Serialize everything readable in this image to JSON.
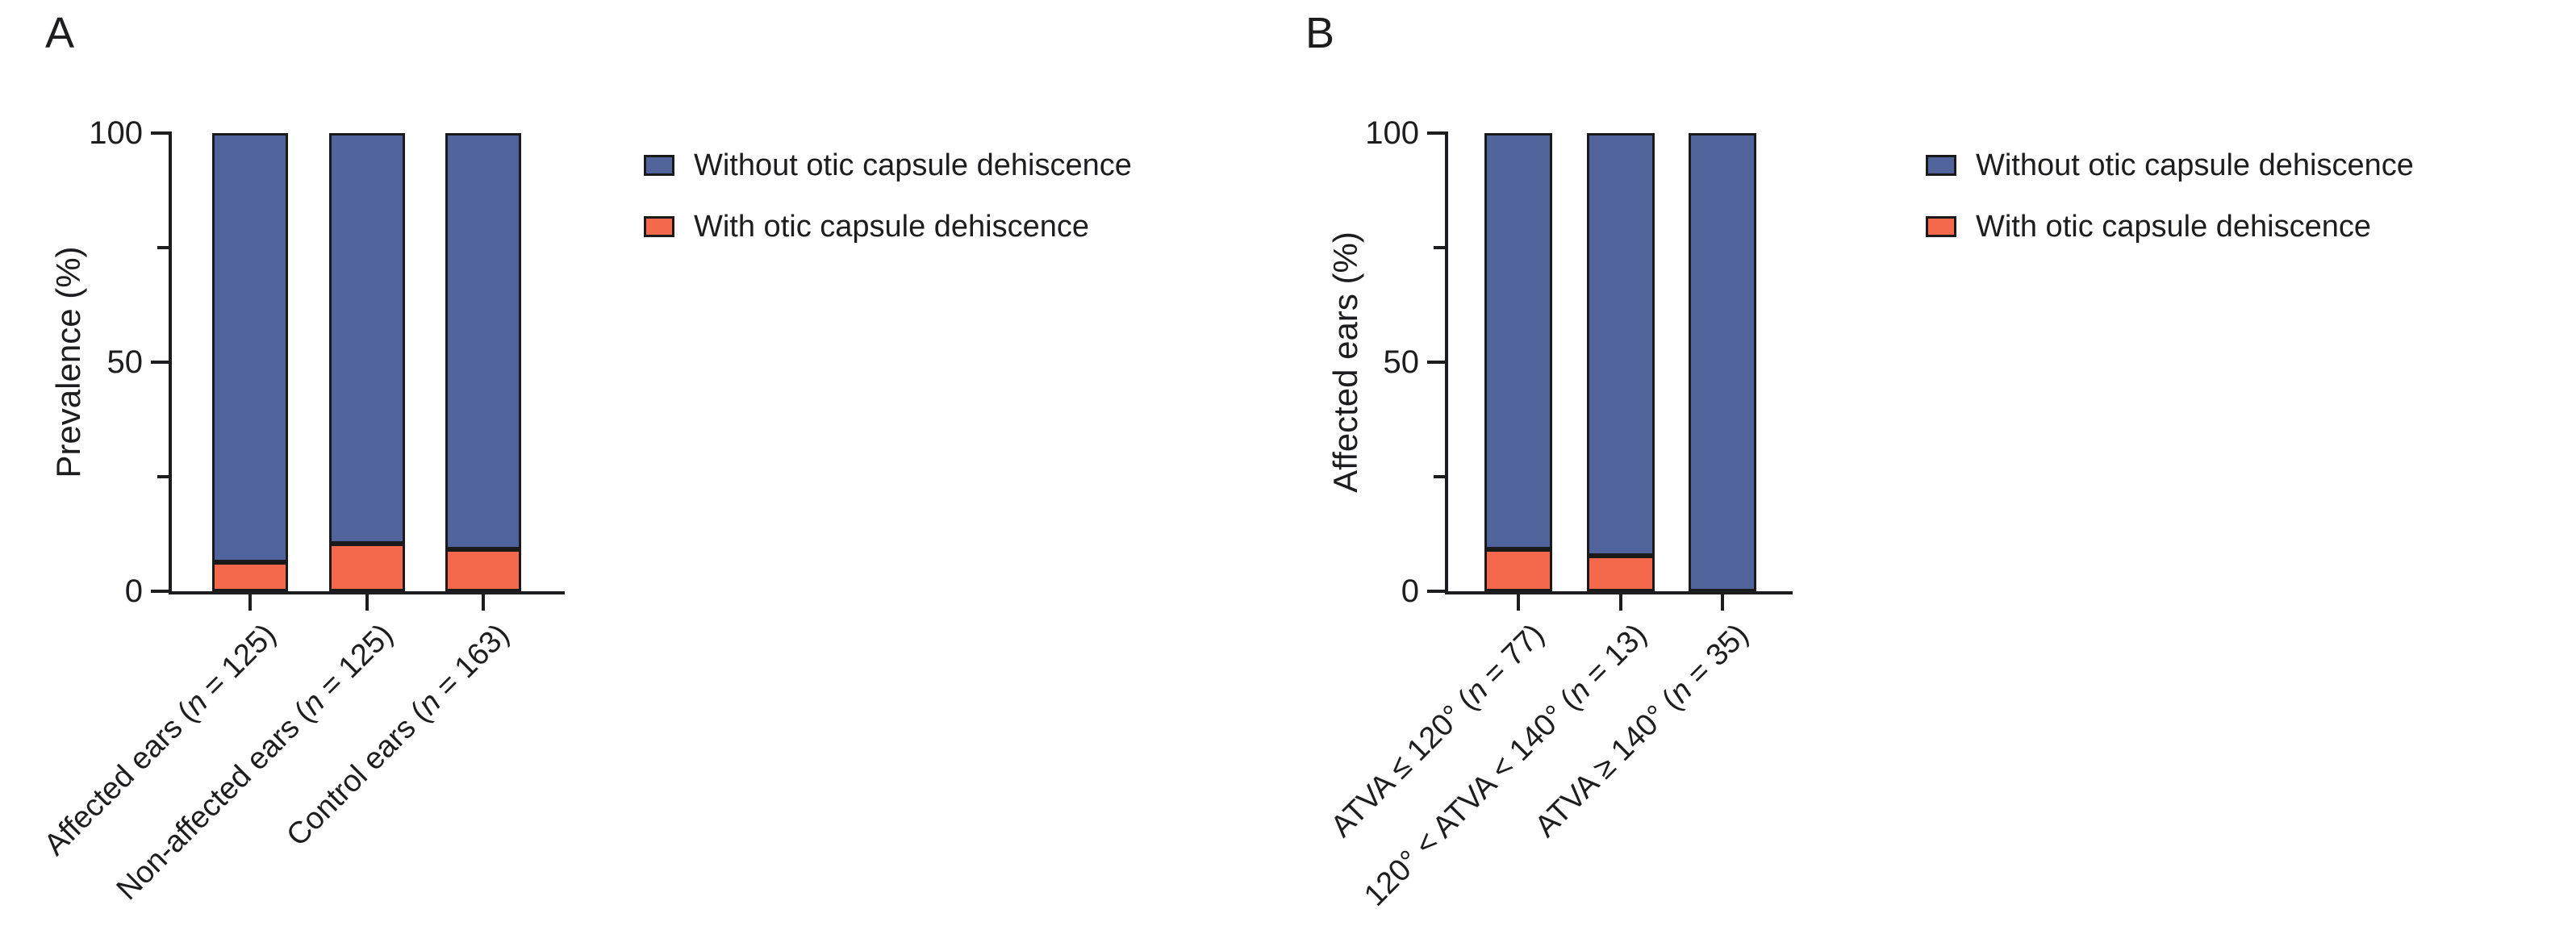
{
  "figure": {
    "background": "#ffffff",
    "axis_color": "#1d1d1f",
    "legend_entries": [
      {
        "label": "Without otic capsule dehiscence",
        "color": "#51639B"
      },
      {
        "label": "With otic capsule dehiscence",
        "color": "#F4694C"
      }
    ]
  },
  "chart_data": [
    {
      "type": "bar",
      "stacked": true,
      "title": "A",
      "ylabel": "Prevalence (%)",
      "xlabel": "",
      "ylim": [
        0,
        100
      ],
      "yticks": [
        0,
        50,
        100
      ],
      "minor_yticks": [
        25,
        75
      ],
      "grid": false,
      "legend_position": "right",
      "categories": [
        "Affected ears (n = 125)",
        "Non-affected ears (n = 125)",
        "Control ears (n = 163)"
      ],
      "series": [
        {
          "name": "With otic capsule dehiscence",
          "color": "#F4694C",
          "values": [
            6.4,
            10.4,
            9.2
          ]
        },
        {
          "name": "Without otic capsule dehiscence",
          "color": "#51639B",
          "values": [
            93.6,
            89.6,
            90.8
          ]
        }
      ]
    },
    {
      "type": "bar",
      "stacked": true,
      "title": "B",
      "ylabel": "Affected ears (%)",
      "xlabel": "",
      "ylim": [
        0,
        100
      ],
      "yticks": [
        0,
        50,
        100
      ],
      "minor_yticks": [
        25,
        75
      ],
      "grid": false,
      "legend_position": "right",
      "categories": [
        "ATVA ≤ 120° (n = 77)",
        "120° < ATVA < 140° (n = 13)",
        "ATVA ≥ 140° (n = 35)"
      ],
      "series": [
        {
          "name": "With otic capsule dehiscence",
          "color": "#F4694C",
          "values": [
            9.1,
            7.7,
            0
          ]
        },
        {
          "name": "Without otic capsule dehiscence",
          "color": "#51639B",
          "values": [
            90.9,
            92.3,
            100
          ]
        }
      ]
    }
  ]
}
